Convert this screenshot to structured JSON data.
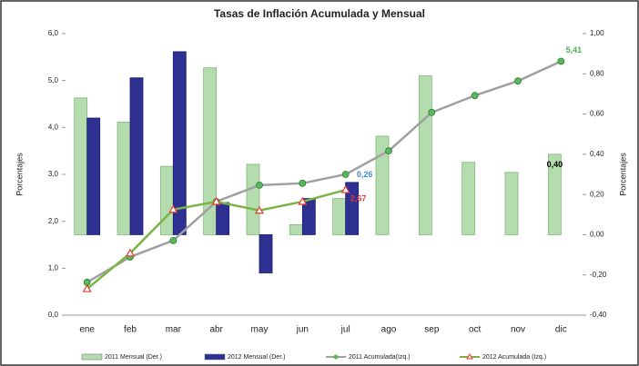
{
  "chart_data": {
    "type": "bar_line",
    "title": "Tasas de Inflación Acumulada y Mensual",
    "ylabel": "Porcentajes",
    "y2label": "Porcentajes",
    "categories": [
      "ene",
      "feb",
      "mar",
      "abr",
      "may",
      "jun",
      "jul",
      "ago",
      "sep",
      "oct",
      "nov",
      "dic"
    ],
    "ylim": [
      0,
      6
    ],
    "yticks": [
      {
        "value": 0,
        "label": "0,0"
      },
      {
        "value": 1,
        "label": "1,0"
      },
      {
        "value": 2,
        "label": "2,0"
      },
      {
        "value": 3,
        "label": "3,0"
      },
      {
        "value": 4,
        "label": "4,0"
      },
      {
        "value": 5,
        "label": "5,0"
      },
      {
        "value": 6,
        "label": "6,0"
      }
    ],
    "y2lim": [
      -0.4,
      1.0
    ],
    "y2ticks": [
      {
        "value": -0.4,
        "label": "-0,40"
      },
      {
        "value": -0.2,
        "label": "-0,20"
      },
      {
        "value": 0,
        "label": "0,00"
      },
      {
        "value": 0.2,
        "label": "0,20"
      },
      {
        "value": 0.4,
        "label": "0,40"
      },
      {
        "value": 0.6,
        "label": "0,60"
      },
      {
        "value": 0.8,
        "label": "0,80"
      },
      {
        "value": 1.0,
        "label": "1,00"
      }
    ],
    "series": [
      {
        "name": "2011 Mensual (Der.)",
        "type": "bar",
        "axis": "y2",
        "color": "#b5dcae",
        "values": [
          0.68,
          0.56,
          0.34,
          0.83,
          0.35,
          0.05,
          0.18,
          0.49,
          0.79,
          0.36,
          0.31,
          0.4
        ],
        "value_labels": [
          null,
          null,
          null,
          null,
          null,
          null,
          null,
          null,
          null,
          null,
          null,
          "0,40"
        ]
      },
      {
        "name": "2012 Mensual (Der.)",
        "type": "bar",
        "axis": "y2",
        "color": "#2e3192",
        "values": [
          0.58,
          0.78,
          0.91,
          0.16,
          -0.19,
          0.18,
          0.26,
          null,
          null,
          null,
          null,
          null
        ],
        "value_labels": [
          null,
          null,
          null,
          null,
          null,
          null,
          "0,26",
          null,
          null,
          null,
          null,
          null
        ]
      },
      {
        "name": "2011 Acumulada(Izq.)",
        "type": "line",
        "color": "#a0a0a0",
        "marker": "circle",
        "marker_color": "#5cb85c",
        "values": [
          0.7,
          1.24,
          1.59,
          2.42,
          2.77,
          2.81,
          3.0,
          3.5,
          4.32,
          4.68,
          4.99,
          5.41
        ],
        "value_labels": [
          null,
          null,
          null,
          null,
          null,
          null,
          null,
          null,
          null,
          null,
          null,
          "5,41"
        ]
      },
      {
        "name": "2012 Acumulada (Izq.)",
        "type": "line",
        "color": "#7cb342",
        "marker": "triangle",
        "marker_color": "#e53935",
        "values": [
          0.56,
          1.32,
          2.25,
          2.42,
          2.23,
          2.42,
          2.67,
          null,
          null,
          null,
          null,
          null
        ],
        "value_labels": [
          null,
          null,
          null,
          null,
          null,
          null,
          "2,67",
          null,
          null,
          null,
          null,
          null
        ]
      }
    ]
  }
}
